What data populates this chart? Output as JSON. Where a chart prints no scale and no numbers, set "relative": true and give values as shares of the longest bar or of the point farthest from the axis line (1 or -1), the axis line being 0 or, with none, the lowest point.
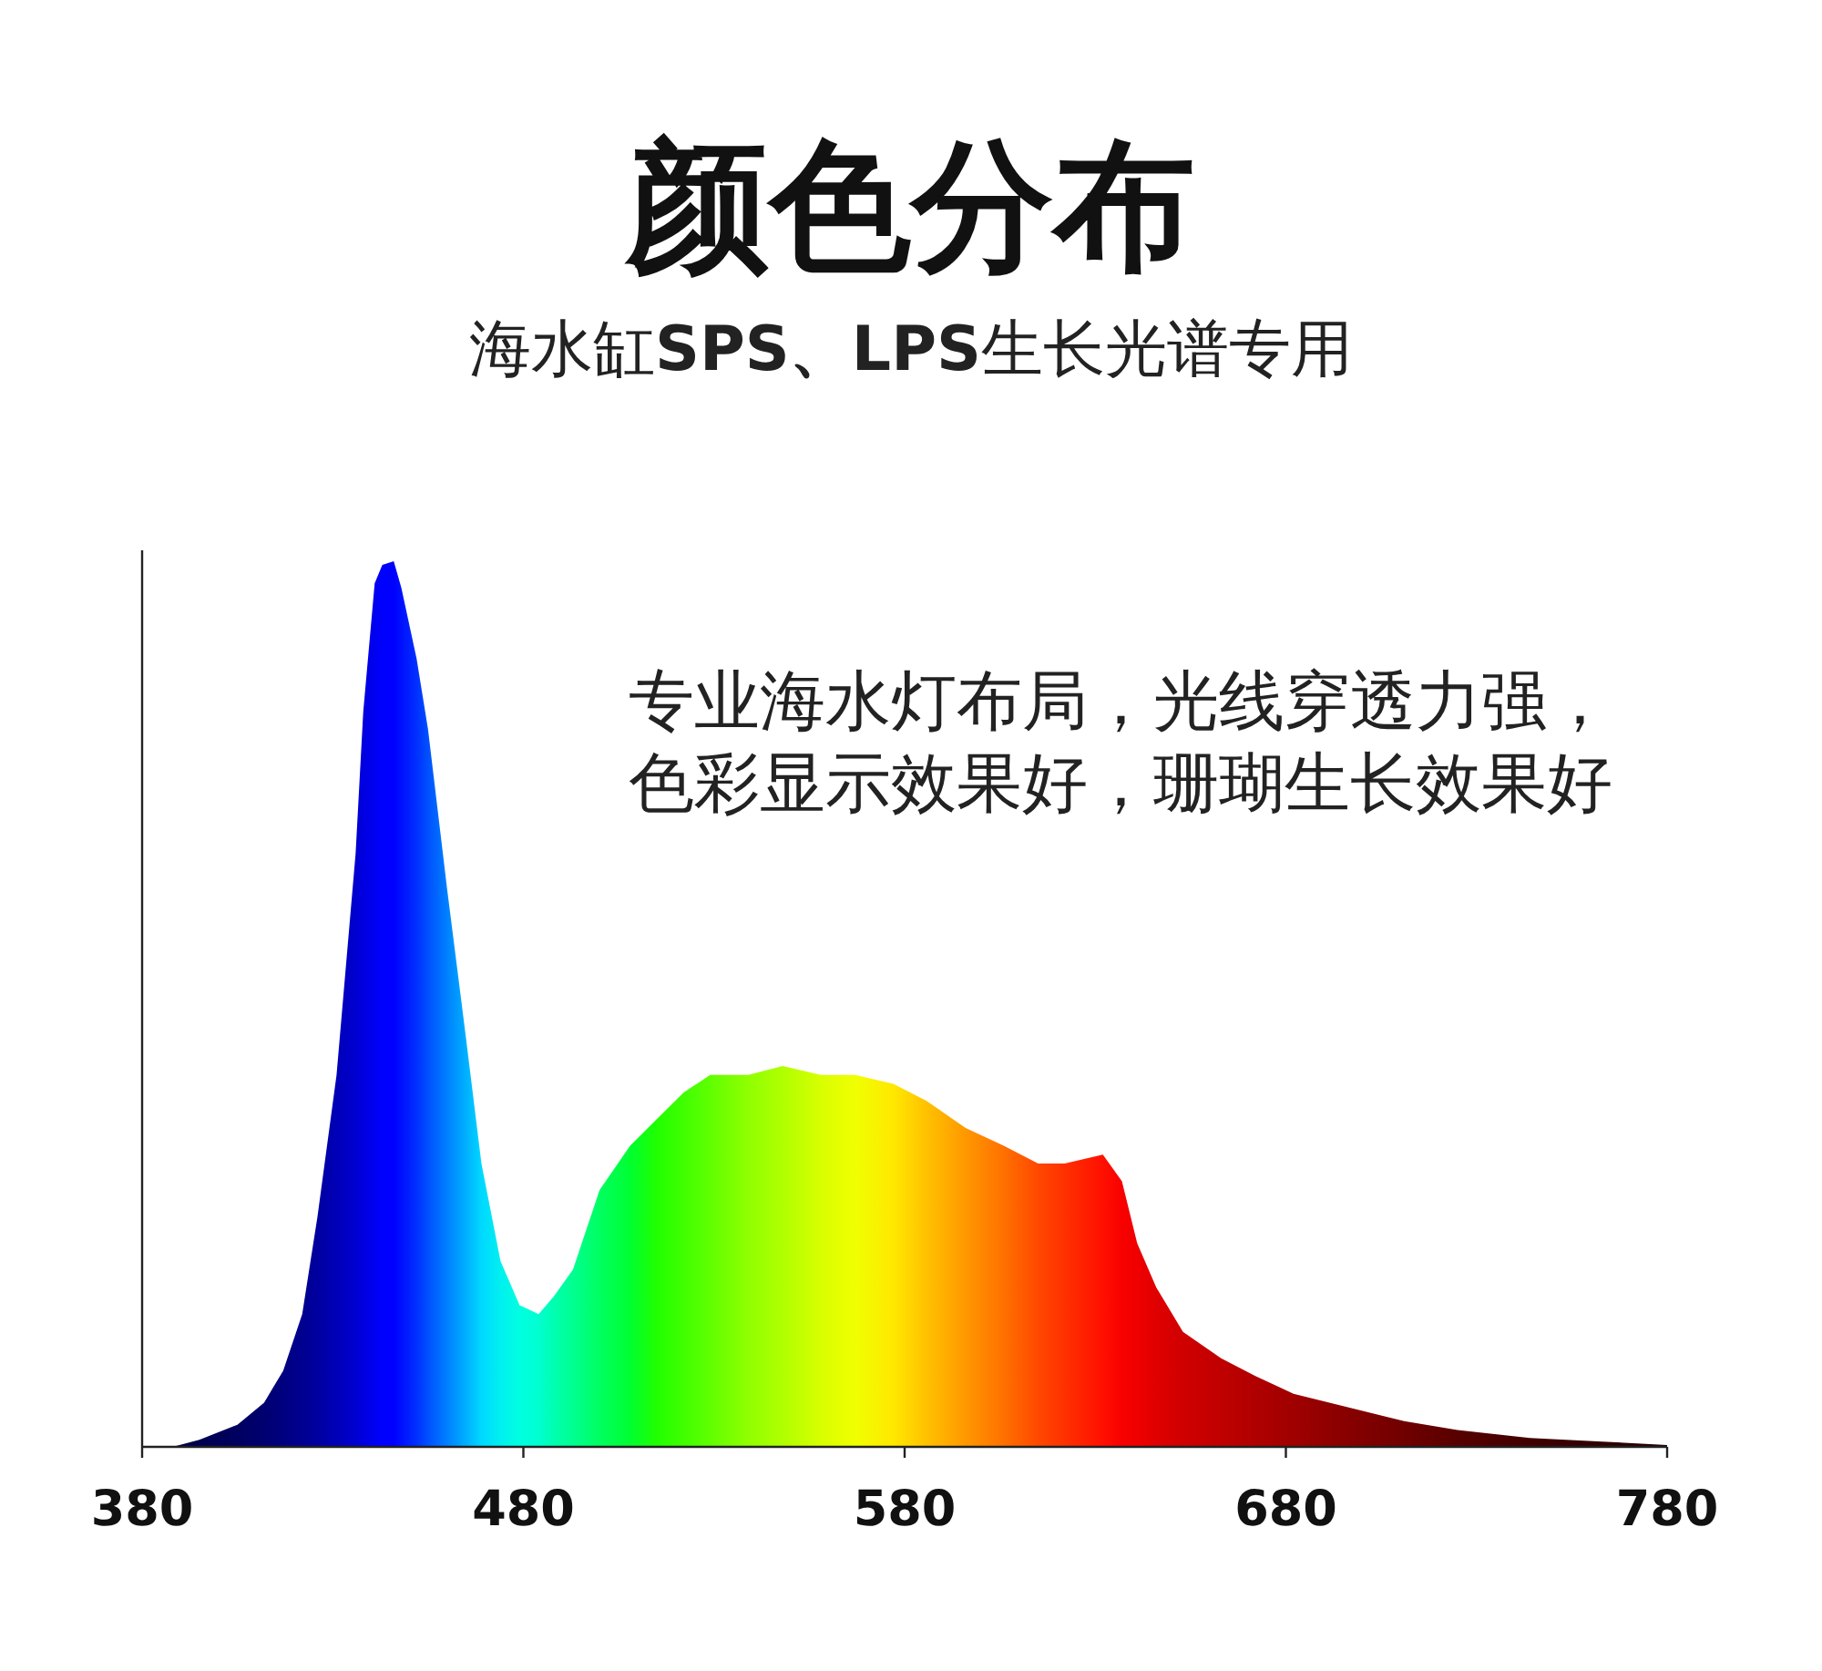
{
  "chart_data": {
    "type": "area",
    "title": "颜色分布",
    "subtitle": "海水缸**SPS、LPS**生长光谱专用",
    "annotations": [
      "专业海水灯布局，光线穿透力强，",
      "色彩显示效果好，珊瑚生长效果好"
    ],
    "relative": true,
    "tick_labels": "x",
    "xlim": [
      380,
      780
    ],
    "xticks": [
      380,
      480,
      580,
      680,
      780
    ],
    "x": [
      380,
      388,
      395,
      405,
      412,
      417,
      422,
      426,
      431,
      436,
      438,
      441,
      443,
      446,
      448,
      452,
      455,
      460,
      465,
      469,
      474,
      479,
      484,
      488,
      493,
      500,
      508,
      515,
      522,
      529,
      539,
      548,
      558,
      567,
      577,
      586,
      596,
      606,
      615,
      622,
      632,
      637,
      641,
      646,
      653,
      663,
      672,
      682,
      696,
      711,
      725,
      744,
      763,
      780
    ],
    "values": [
      0,
      0,
      0.008,
      0.025,
      0.05,
      0.086,
      0.15,
      0.26,
      0.42,
      0.67,
      0.83,
      0.975,
      0.996,
      1,
      0.97,
      0.89,
      0.81,
      0.63,
      0.46,
      0.32,
      0.21,
      0.16,
      0.15,
      0.17,
      0.2,
      0.29,
      0.34,
      0.37,
      0.4,
      0.42,
      0.42,
      0.43,
      0.42,
      0.42,
      0.41,
      0.39,
      0.36,
      0.34,
      0.32,
      0.32,
      0.33,
      0.3,
      0.23,
      0.18,
      0.13,
      0.1,
      0.08,
      0.06,
      0.045,
      0.029,
      0.019,
      0.01,
      0.006,
      0.002
    ],
    "colors": [
      "#000030",
      "#000040",
      "#000050",
      "#000060",
      "#000070",
      "#000080",
      "#000090",
      "#0000a0",
      "#0000b8",
      "#0000d0",
      "#0000e0",
      "#0000f0",
      "#0000ff",
      "#0000ff",
      "#0010ff",
      "#0030ff",
      "#0050ff",
      "#0080ff",
      "#00b0ff",
      "#00d8ff",
      "#00f0f0",
      "#00ffe0",
      "#00ffd0",
      "#00ffb0",
      "#00ff90",
      "#00ff60",
      "#00ff30",
      "#20ff00",
      "#40ff00",
      "#60ff00",
      "#90ff00",
      "#b0ff00",
      "#d8ff00",
      "#f0ff00",
      "#ffe800",
      "#ffc000",
      "#ff9800",
      "#ff7000",
      "#ff4800",
      "#ff3000",
      "#ff1000",
      "#f80000",
      "#f00000",
      "#e00000",
      "#d00000",
      "#c00000",
      "#b00000",
      "#a00000",
      "#880000",
      "#700000",
      "#580000",
      "#400000",
      "#300000",
      "#200000"
    ]
  }
}
